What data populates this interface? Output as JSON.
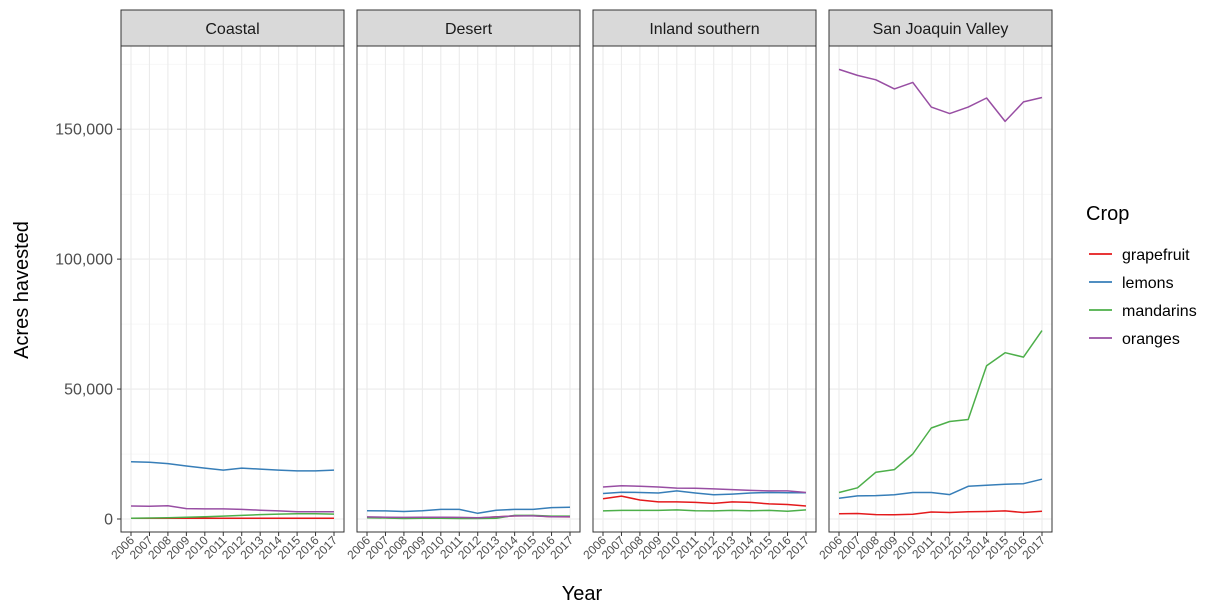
{
  "chart_data": {
    "type": "line",
    "title": "",
    "xlabel": "Year",
    "ylabel": "Acres havested",
    "legend_title": "Crop",
    "legend_position": "right",
    "grid": true,
    "ylim": [
      -5000,
      182000
    ],
    "y_ticks": [
      0,
      50000,
      100000,
      150000
    ],
    "y_tick_labels": [
      "0",
      "50,000",
      "100,000",
      "150,000"
    ],
    "x": [
      2006,
      2007,
      2008,
      2009,
      2010,
      2011,
      2012,
      2013,
      2014,
      2015,
      2016,
      2017
    ],
    "crops": [
      {
        "name": "grapefruit",
        "color": "#e41a1c"
      },
      {
        "name": "lemons",
        "color": "#377eb8"
      },
      {
        "name": "mandarins",
        "color": "#4daf4a"
      },
      {
        "name": "oranges",
        "color": "#984ea3"
      }
    ],
    "panels": [
      {
        "name": "Coastal",
        "series": {
          "grapefruit": [
            300,
            300,
            300,
            300,
            300,
            300,
            300,
            300,
            300,
            300,
            300,
            300
          ],
          "lemons": [
            22000,
            21800,
            21300,
            20400,
            19600,
            18800,
            19600,
            19200,
            18800,
            18500,
            18500,
            18800
          ],
          "mandarins": [
            300,
            400,
            500,
            700,
            900,
            1100,
            1400,
            1700,
            1900,
            2000,
            2000,
            1900
          ],
          "oranges": [
            5000,
            4900,
            5100,
            4000,
            3900,
            3900,
            3700,
            3400,
            3100,
            2800,
            2800,
            2800
          ]
        }
      },
      {
        "name": "Desert",
        "series": {
          "grapefruit": [
            700,
            500,
            400,
            500,
            600,
            500,
            400,
            800,
            1200,
            1300,
            900,
            800
          ],
          "lemons": [
            3200,
            3100,
            2900,
            3200,
            3700,
            3700,
            2200,
            3400,
            3700,
            3700,
            4400,
            4500
          ],
          "mandarins": [
            500,
            400,
            200,
            300,
            300,
            200,
            200,
            300,
            1400,
            1400,
            1100,
            1100
          ],
          "oranges": [
            800,
            700,
            600,
            700,
            700,
            600,
            500,
            800,
            1200,
            1200,
            900,
            900
          ]
        }
      },
      {
        "name": "Inland southern",
        "series": {
          "grapefruit": [
            7800,
            8800,
            7300,
            6600,
            6600,
            6400,
            6000,
            6600,
            6400,
            5800,
            5600,
            5000
          ],
          "lemons": [
            9800,
            10300,
            10200,
            10000,
            10800,
            10000,
            9300,
            9600,
            10000,
            10200,
            10100,
            10100
          ],
          "mandarins": [
            3100,
            3300,
            3300,
            3300,
            3500,
            3200,
            3100,
            3300,
            3200,
            3300,
            3000,
            3500
          ],
          "oranges": [
            12300,
            12800,
            12600,
            12300,
            11900,
            11800,
            11600,
            11300,
            11000,
            10800,
            10800,
            10200
          ]
        }
      },
      {
        "name": "San Joaquin Valley",
        "series": {
          "grapefruit": [
            2000,
            2100,
            1700,
            1600,
            1800,
            2700,
            2500,
            2800,
            2900,
            3100,
            2500,
            3000
          ],
          "lemons": [
            8000,
            8900,
            9000,
            9300,
            10200,
            10200,
            9400,
            12600,
            13000,
            13400,
            13600,
            15300
          ],
          "mandarins": [
            10200,
            12000,
            18000,
            19000,
            25000,
            35000,
            37500,
            38300,
            59000,
            64000,
            62300,
            72500
          ],
          "oranges": [
            173000,
            170700,
            169000,
            165500,
            168000,
            158500,
            156000,
            158500,
            162000,
            153000,
            160500,
            162200
          ]
        }
      }
    ]
  }
}
